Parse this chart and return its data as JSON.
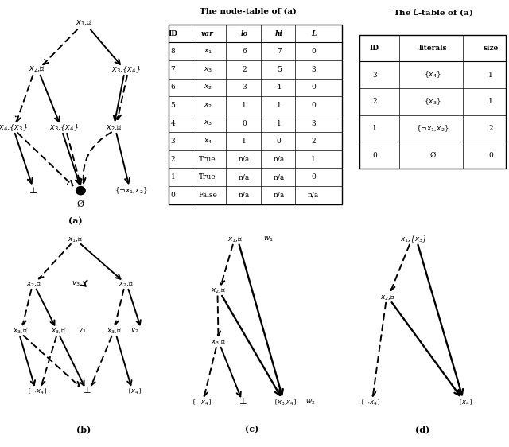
{
  "node_table": {
    "title": "The node-table of (a)",
    "headers": [
      "ID",
      "var",
      "lo",
      "hi",
      "L"
    ],
    "rows": [
      [
        "8",
        "x_1",
        "6",
        "7",
        "0"
      ],
      [
        "7",
        "x_3",
        "2",
        "5",
        "3"
      ],
      [
        "6",
        "x_2",
        "3",
        "4",
        "0"
      ],
      [
        "5",
        "x_2",
        "1",
        "1",
        "0"
      ],
      [
        "4",
        "x_3",
        "0",
        "1",
        "3"
      ],
      [
        "3",
        "x_4",
        "1",
        "0",
        "2"
      ],
      [
        "2",
        "True",
        "n/a",
        "n/a",
        "1"
      ],
      [
        "1",
        "True",
        "n/a",
        "n/a",
        "0"
      ],
      [
        "0",
        "False",
        "n/a",
        "n/a",
        "n/a"
      ]
    ]
  },
  "l_table": {
    "title": "The L-table of (a)",
    "headers": [
      "ID",
      "literals",
      "size"
    ],
    "rows": [
      [
        "3",
        "{x_4}",
        "1"
      ],
      [
        "2",
        "{x_3}",
        "1"
      ],
      [
        "1",
        "{\\neg x_1, x_2}",
        "2"
      ],
      [
        "0",
        "\\emptyset",
        "0"
      ]
    ]
  }
}
